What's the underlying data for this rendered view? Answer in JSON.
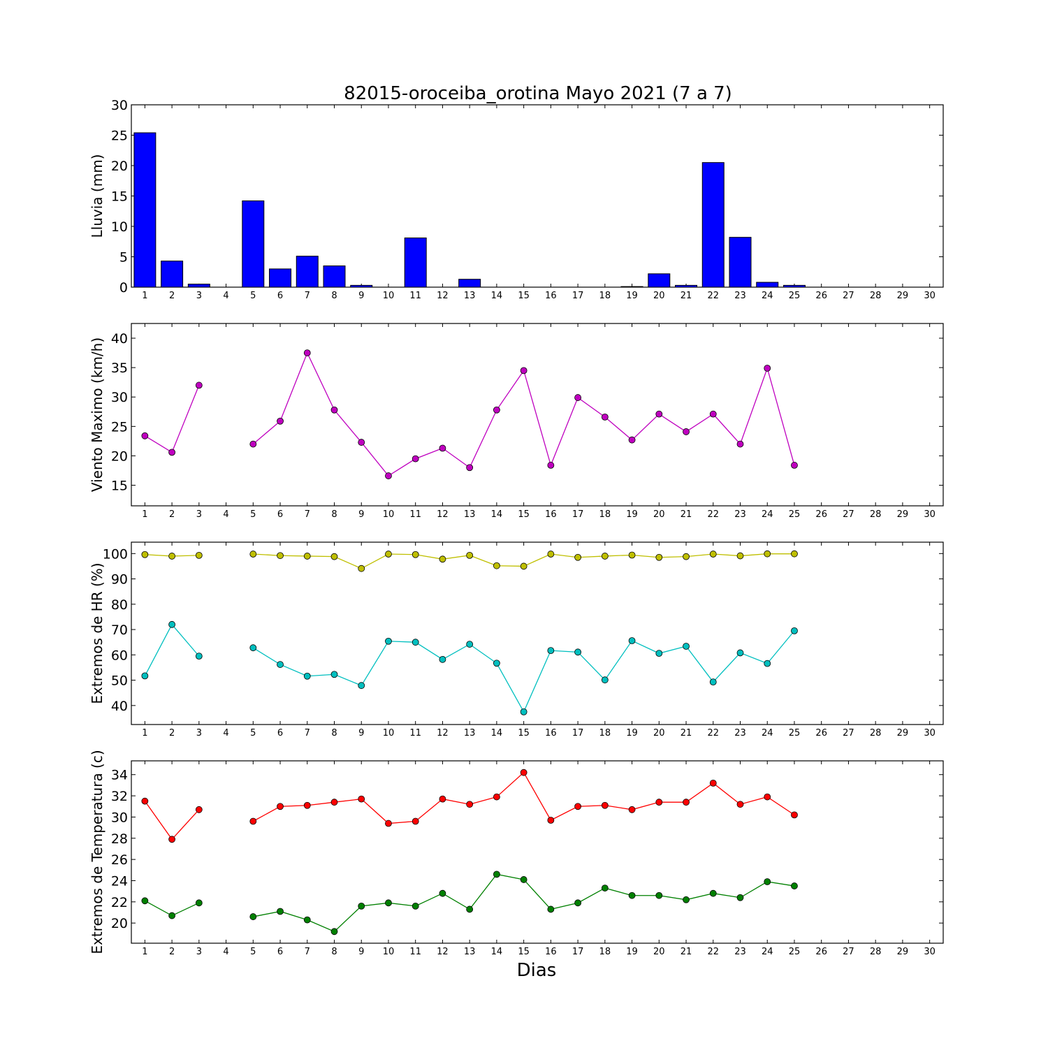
{
  "title": "82015-oroceiba_orotina Mayo 2021  (7 a 7)",
  "xlabel": "Dias",
  "chart_data": [
    {
      "type": "bar",
      "ylabel": "Lluvia (mm)",
      "categories": [
        1,
        2,
        3,
        4,
        5,
        6,
        7,
        8,
        9,
        10,
        11,
        12,
        13,
        14,
        15,
        16,
        17,
        18,
        19,
        20,
        21,
        22,
        23,
        24,
        25,
        26,
        27,
        28,
        29,
        30
      ],
      "xlim": [
        0.5,
        30.5
      ],
      "ylim": [
        0,
        30
      ],
      "yticks": [
        0,
        5,
        10,
        15,
        20,
        25,
        30
      ],
      "series": [
        {
          "color": "#0000ff",
          "values": [
            25.4,
            4.3,
            0.5,
            null,
            14.2,
            3.0,
            5.1,
            3.5,
            0.3,
            null,
            8.1,
            null,
            1.3,
            0,
            0,
            0,
            0,
            0,
            0.1,
            2.2,
            0.3,
            20.5,
            8.2,
            0.8,
            0.3,
            null,
            null,
            null,
            null,
            null
          ]
        }
      ]
    },
    {
      "type": "line",
      "ylabel": "Viento Maximo (km/h)",
      "xlim": [
        0.5,
        30.5
      ],
      "ylim": [
        11.5,
        42.5
      ],
      "yticks": [
        15,
        20,
        25,
        30,
        35,
        40
      ],
      "series": [
        {
          "color": "#bf00bf",
          "x": [
            1,
            2,
            3,
            4,
            5,
            6,
            7,
            8,
            9,
            10,
            11,
            12,
            13,
            14,
            15,
            16,
            17,
            18,
            19,
            20,
            21,
            22,
            23,
            24,
            25
          ],
          "values": [
            23.4,
            20.6,
            32.0,
            null,
            22.0,
            25.9,
            37.5,
            27.8,
            22.3,
            16.6,
            19.5,
            21.3,
            18.0,
            27.8,
            34.5,
            18.4,
            29.9,
            26.6,
            22.7,
            27.1,
            24.1,
            27.1,
            22.0,
            34.9,
            18.4
          ]
        }
      ]
    },
    {
      "type": "line",
      "ylabel": "Extremos de HR (%)",
      "xlim": [
        0.5,
        30.5
      ],
      "ylim": [
        32.5,
        104.5
      ],
      "yticks": [
        40,
        50,
        60,
        70,
        80,
        90,
        100
      ],
      "series": [
        {
          "color": "#bfbf00",
          "x": [
            1,
            2,
            3,
            4,
            5,
            6,
            7,
            8,
            9,
            10,
            11,
            12,
            13,
            14,
            15,
            16,
            17,
            18,
            19,
            20,
            21,
            22,
            23,
            24,
            25
          ],
          "values": [
            99.6,
            99.0,
            99.3,
            null,
            99.8,
            99.2,
            99.0,
            98.8,
            94.1,
            99.8,
            99.6,
            97.8,
            99.3,
            95.2,
            95.0,
            99.8,
            98.5,
            99.0,
            99.4,
            98.5,
            98.8,
            99.8,
            99.1,
            99.9,
            99.9
          ]
        },
        {
          "color": "#00bfbf",
          "x": [
            1,
            2,
            3,
            4,
            5,
            6,
            7,
            8,
            9,
            10,
            11,
            12,
            13,
            14,
            15,
            16,
            17,
            18,
            19,
            20,
            21,
            22,
            23,
            24,
            25
          ],
          "values": [
            51.7,
            72.0,
            59.5,
            null,
            62.8,
            56.2,
            51.6,
            52.3,
            47.9,
            65.4,
            65.0,
            58.2,
            64.2,
            56.7,
            37.5,
            61.7,
            61.1,
            50.1,
            65.6,
            60.6,
            63.4,
            49.3,
            60.8,
            56.6,
            69.5
          ]
        }
      ]
    },
    {
      "type": "line",
      "ylabel": "Extremos de Temperatura (c)",
      "xlim": [
        0.5,
        30.5
      ],
      "ylim": [
        18.1,
        35.3
      ],
      "yticks": [
        20,
        22,
        24,
        26,
        28,
        30,
        32,
        34
      ],
      "series": [
        {
          "color": "#ff0000",
          "x": [
            1,
            2,
            3,
            4,
            5,
            6,
            7,
            8,
            9,
            10,
            11,
            12,
            13,
            14,
            15,
            16,
            17,
            18,
            19,
            20,
            21,
            22,
            23,
            24,
            25
          ],
          "values": [
            31.5,
            27.9,
            30.7,
            null,
            29.6,
            31.0,
            31.1,
            31.4,
            31.7,
            29.4,
            29.6,
            31.7,
            31.2,
            31.9,
            34.2,
            29.7,
            31.0,
            31.1,
            30.7,
            31.4,
            31.4,
            33.2,
            31.2,
            31.9,
            30.2
          ]
        },
        {
          "color": "#008000",
          "x": [
            1,
            2,
            3,
            4,
            5,
            6,
            7,
            8,
            9,
            10,
            11,
            12,
            13,
            14,
            15,
            16,
            17,
            18,
            19,
            20,
            21,
            22,
            23,
            24,
            25
          ],
          "values": [
            22.1,
            20.7,
            21.9,
            null,
            20.6,
            21.1,
            20.3,
            19.2,
            21.6,
            21.9,
            21.6,
            22.8,
            21.3,
            24.6,
            24.1,
            21.3,
            21.9,
            23.3,
            22.6,
            22.6,
            22.2,
            22.8,
            22.4,
            23.9,
            23.5
          ]
        }
      ]
    }
  ]
}
